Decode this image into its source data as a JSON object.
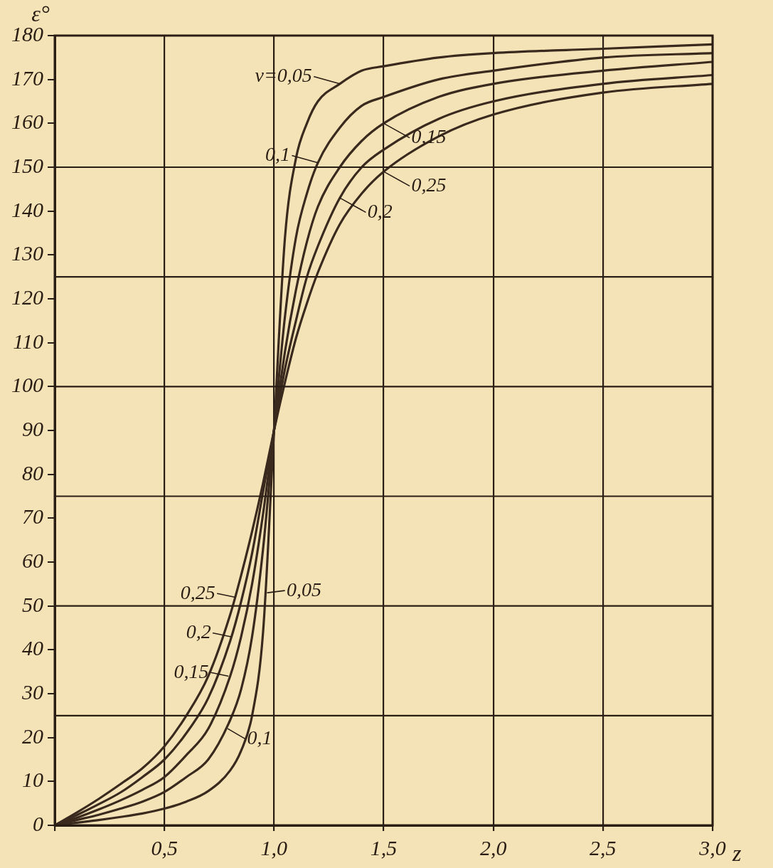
{
  "chart_data": {
    "type": "line",
    "xlabel": "z",
    "ylabel": "ε°",
    "x": [
      0,
      0.1,
      0.2,
      0.3,
      0.4,
      0.5,
      0.6,
      0.7,
      0.8,
      0.85,
      0.9,
      0.95,
      1.0,
      1.05,
      1.1,
      1.15,
      1.2,
      1.3,
      1.4,
      1.5,
      1.75,
      2.0,
      2.5,
      3.0
    ],
    "series": [
      {
        "color": "#3a2a1e",
        "values": [
          0,
          0.6,
          1.2,
          1.9,
          2.7,
          3.8,
          5.4,
          7.8,
          12.5,
          17,
          25,
          44,
          90,
          134,
          152,
          160,
          165,
          169,
          172,
          173,
          175,
          176,
          177,
          178
        ]
      },
      {
        "color": "#3a2a1e",
        "values": [
          0,
          1.2,
          2.4,
          3.8,
          5.4,
          7.6,
          11,
          15,
          24,
          31,
          43,
          63,
          90,
          116,
          134,
          144,
          151,
          159,
          164,
          166,
          170,
          172,
          175,
          176
        ]
      },
      {
        "color": "#3a2a1e",
        "values": [
          0,
          1.7,
          3.6,
          5.7,
          8.1,
          11,
          16,
          22,
          34,
          43,
          55,
          71,
          90,
          108,
          122,
          133,
          141,
          150,
          156,
          160,
          166,
          169,
          172,
          174
        ]
      },
      {
        "color": "#3a2a1e",
        "values": [
          0,
          2.3,
          4.8,
          7.5,
          11,
          15,
          21,
          29,
          42,
          51,
          62,
          76,
          90,
          104,
          115,
          125,
          132,
          143,
          150,
          154,
          161,
          165,
          169,
          171
        ]
      },
      {
        "color": "#3a2a1e",
        "values": [
          0,
          2.9,
          6,
          9.4,
          13,
          18,
          25,
          34,
          48,
          57,
          67,
          78,
          90,
          101,
          111,
          119,
          126,
          137,
          144,
          149,
          157,
          162,
          167,
          169
        ]
      }
    ],
    "xlim": [
      0,
      3.0
    ],
    "xticks": [
      {
        "value": 0,
        "label": null
      },
      {
        "value": 0.5,
        "label": "0,5"
      },
      {
        "value": 1.0,
        "label": "1,0"
      },
      {
        "value": 1.5,
        "label": "1,5"
      },
      {
        "value": 2.0,
        "label": "2,0"
      },
      {
        "value": 2.5,
        "label": "2,5"
      },
      {
        "value": 3.0,
        "label": "3,0"
      }
    ],
    "ylim": [
      0,
      180
    ],
    "yticks": [
      0,
      10,
      20,
      30,
      40,
      50,
      60,
      70,
      80,
      90,
      100,
      110,
      120,
      130,
      140,
      150,
      160,
      170,
      180
    ],
    "grid": "x",
    "ref_lines": [
      {
        "axis": "y",
        "value": 25
      },
      {
        "axis": "y",
        "value": 50
      },
      {
        "axis": "y",
        "value": 75
      },
      {
        "axis": "y",
        "value": 100
      },
      {
        "axis": "y",
        "value": 125
      },
      {
        "axis": "y",
        "value": 150
      }
    ],
    "annotations": [
      {
        "text": "ν=0,05",
        "x": 1.3,
        "y": 169
      },
      {
        "text": "0,1",
        "x": 1.2,
        "y": 151
      },
      {
        "text": "0,15",
        "x": 1.5,
        "y": 160
      },
      {
        "text": "0,25",
        "x": 1.5,
        "y": 149
      },
      {
        "text": "0,2",
        "x": 1.3,
        "y": 143
      },
      {
        "text": "0,25",
        "x": 0.82,
        "y": 52
      },
      {
        "text": "0,2",
        "x": 0.8,
        "y": 43
      },
      {
        "text": "0,15",
        "x": 0.79,
        "y": 34
      },
      {
        "text": "0,05",
        "x": 0.97,
        "y": 53
      },
      {
        "text": "0,1",
        "x": 0.79,
        "y": 22
      }
    ],
    "legend": false,
    "marker": "none",
    "line_style": "solid"
  }
}
